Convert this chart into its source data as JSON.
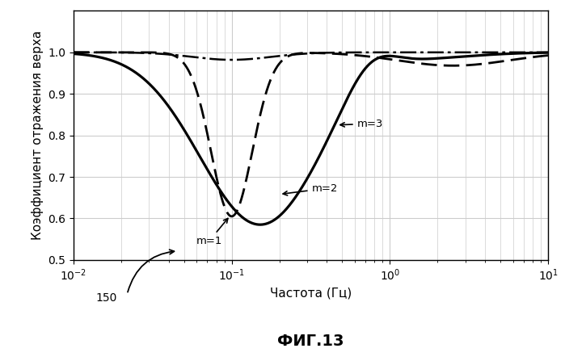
{
  "xlabel": "Частота (Гц)",
  "ylabel": "Коэффициент отражения верха",
  "fig_label": "ФИГ.13",
  "xlim": [
    0.01,
    10
  ],
  "ylim": [
    0.5,
    1.1
  ],
  "yticks": [
    0.5,
    0.6,
    0.7,
    0.8,
    0.9,
    1.0
  ],
  "background_color": "#ffffff",
  "grid_color": "#cccccc",
  "line_color": "#000000"
}
